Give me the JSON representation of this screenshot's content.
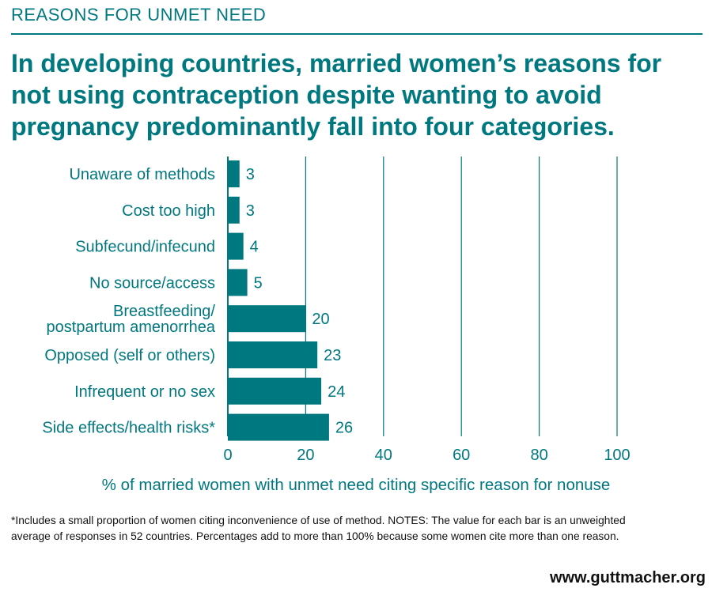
{
  "header": {
    "kicker": "REASONS FOR UNMET NEED",
    "title": "In developing countries, married women’s reasons for not using contraception despite wanting to avoid pregnancy predominantly fall into four categories."
  },
  "chart_data": {
    "type": "bar",
    "orientation": "horizontal",
    "categories": [
      "Unaware of methods",
      "Cost too high",
      "Subfecund/infecund",
      "No source/access",
      "Breastfeeding/\npostpartum amenorrhea",
      "Opposed (self or others)",
      "Infrequent or no sex",
      "Side effects/health risks*"
    ],
    "values": [
      3,
      3,
      4,
      5,
      20,
      23,
      24,
      26
    ],
    "xlabel": "% of married women with unmet need citing specific reason for nonuse",
    "xlim": [
      0,
      100
    ],
    "xticks": [
      0,
      20,
      40,
      60,
      80,
      100
    ],
    "grid": true,
    "bar_color": "#00787f"
  },
  "notes": "*Includes a small proportion of women citing inconvenience of use of method. NOTES: The value for each bar is an unweighted average of responses in 52 countries. Percentages add to more than 100% because some women cite more than one reason.",
  "footer": {
    "site": "www.guttmacher.org"
  }
}
